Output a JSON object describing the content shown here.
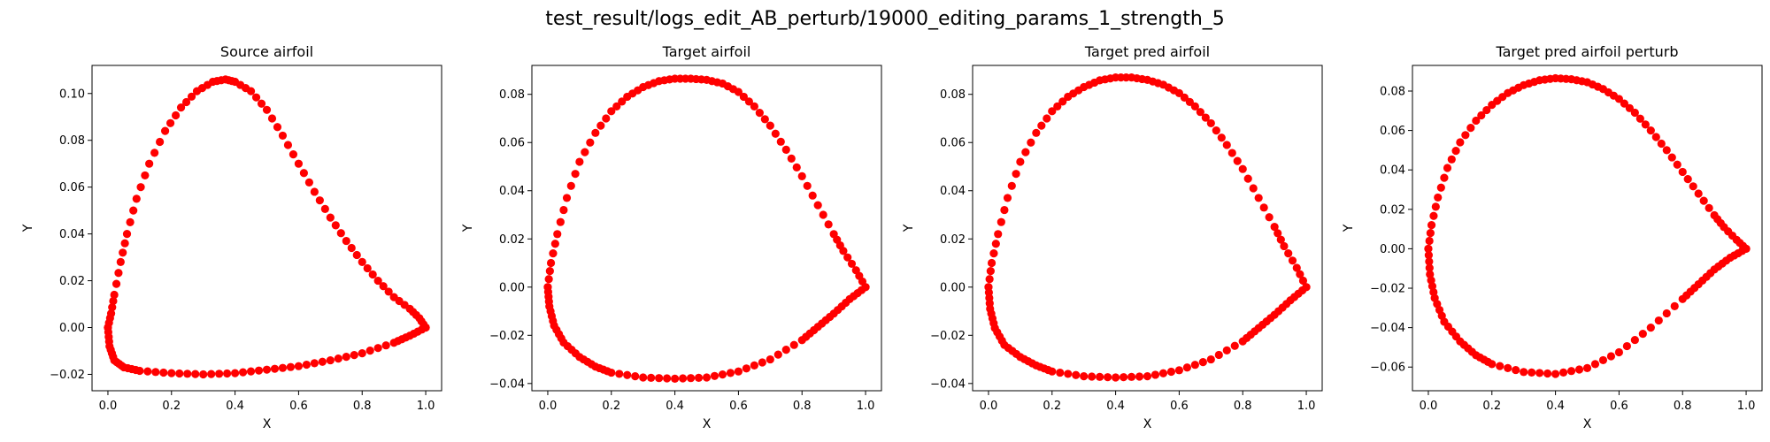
{
  "figure": {
    "suptitle": "test_result/logs_edit_AB_perturb/19000_editing_params_1_strength_5",
    "marker_color": "#ff0000",
    "marker_shape": "circle"
  },
  "chart_data": [
    {
      "type": "scatter",
      "title": "Source airfoil",
      "xlabel": "X",
      "ylabel": "Y",
      "xlim": [
        -0.05,
        1.05
      ],
      "ylim": [
        -0.027,
        0.112
      ],
      "xticks": [
        0.0,
        0.2,
        0.4,
        0.6,
        0.8,
        1.0
      ],
      "xtick_labels": [
        "0.0",
        "0.2",
        "0.4",
        "0.6",
        "0.8",
        "1.0"
      ],
      "yticks": [
        -0.02,
        0.0,
        0.02,
        0.04,
        0.06,
        0.08,
        0.1
      ],
      "ytick_labels": [
        "−0.02",
        "0.00",
        "0.02",
        "0.04",
        "0.06",
        "0.08",
        "0.10"
      ],
      "upper_surface": [
        [
          1.0,
          0.0
        ],
        [
          0.98,
          0.004
        ],
        [
          0.95,
          0.008
        ],
        [
          0.9,
          0.013
        ],
        [
          0.85,
          0.02
        ],
        [
          0.8,
          0.028
        ],
        [
          0.75,
          0.037
        ],
        [
          0.7,
          0.047
        ],
        [
          0.65,
          0.058
        ],
        [
          0.6,
          0.07
        ],
        [
          0.55,
          0.082
        ],
        [
          0.5,
          0.093
        ],
        [
          0.45,
          0.101
        ],
        [
          0.4,
          0.105
        ],
        [
          0.37,
          0.106
        ],
        [
          0.33,
          0.105
        ],
        [
          0.28,
          0.101
        ],
        [
          0.23,
          0.094
        ],
        [
          0.18,
          0.084
        ],
        [
          0.13,
          0.07
        ],
        [
          0.09,
          0.055
        ],
        [
          0.06,
          0.04
        ],
        [
          0.04,
          0.028
        ],
        [
          0.02,
          0.014
        ],
        [
          0.01,
          0.006
        ],
        [
          0.0,
          0.0
        ]
      ],
      "lower_surface": [
        [
          0.0,
          0.0
        ],
        [
          0.005,
          -0.008
        ],
        [
          0.02,
          -0.014
        ],
        [
          0.05,
          -0.017
        ],
        [
          0.1,
          -0.0185
        ],
        [
          0.2,
          -0.0195
        ],
        [
          0.3,
          -0.02
        ],
        [
          0.4,
          -0.0195
        ],
        [
          0.5,
          -0.018
        ],
        [
          0.6,
          -0.0165
        ],
        [
          0.7,
          -0.014
        ],
        [
          0.8,
          -0.011
        ],
        [
          0.9,
          -0.0065
        ],
        [
          0.95,
          -0.0035
        ],
        [
          1.0,
          0.0
        ]
      ]
    },
    {
      "type": "scatter",
      "title": "Target airfoil",
      "xlabel": "X",
      "ylabel": "Y",
      "xlim": [
        -0.05,
        1.05
      ],
      "ylim": [
        -0.043,
        0.092
      ],
      "xticks": [
        0.0,
        0.2,
        0.4,
        0.6,
        0.8,
        1.0
      ],
      "xtick_labels": [
        "0.0",
        "0.2",
        "0.4",
        "0.6",
        "0.8",
        "1.0"
      ],
      "yticks": [
        -0.04,
        -0.02,
        0.0,
        0.02,
        0.04,
        0.06,
        0.08
      ],
      "ytick_labels": [
        "−0.04",
        "−0.02",
        "0.00",
        "0.02",
        "0.04",
        "0.06",
        "0.08"
      ],
      "upper_surface": [
        [
          1.0,
          0.0
        ],
        [
          0.97,
          0.007
        ],
        [
          0.93,
          0.015
        ],
        [
          0.9,
          0.022
        ],
        [
          0.85,
          0.034
        ],
        [
          0.8,
          0.046
        ],
        [
          0.75,
          0.057
        ],
        [
          0.7,
          0.067
        ],
        [
          0.65,
          0.075
        ],
        [
          0.6,
          0.081
        ],
        [
          0.55,
          0.0845
        ],
        [
          0.5,
          0.086
        ],
        [
          0.45,
          0.0865
        ],
        [
          0.4,
          0.0865
        ],
        [
          0.35,
          0.0855
        ],
        [
          0.3,
          0.083
        ],
        [
          0.25,
          0.079
        ],
        [
          0.2,
          0.073
        ],
        [
          0.15,
          0.064
        ],
        [
          0.1,
          0.052
        ],
        [
          0.06,
          0.037
        ],
        [
          0.03,
          0.022
        ],
        [
          0.01,
          0.01
        ],
        [
          0.0,
          0.0
        ]
      ],
      "lower_surface": [
        [
          0.0,
          0.0
        ],
        [
          0.005,
          -0.008
        ],
        [
          0.02,
          -0.016
        ],
        [
          0.05,
          -0.023
        ],
        [
          0.1,
          -0.029
        ],
        [
          0.15,
          -0.033
        ],
        [
          0.2,
          -0.0355
        ],
        [
          0.3,
          -0.0375
        ],
        [
          0.4,
          -0.038
        ],
        [
          0.5,
          -0.0375
        ],
        [
          0.6,
          -0.035
        ],
        [
          0.7,
          -0.03
        ],
        [
          0.8,
          -0.022
        ],
        [
          0.85,
          -0.0165
        ],
        [
          0.9,
          -0.011
        ],
        [
          0.95,
          -0.005
        ],
        [
          1.0,
          0.0
        ]
      ]
    },
    {
      "type": "scatter",
      "title": "Target pred airfoil",
      "xlabel": "X",
      "ylabel": "Y",
      "xlim": [
        -0.05,
        1.05
      ],
      "ylim": [
        -0.043,
        0.092
      ],
      "xticks": [
        0.0,
        0.2,
        0.4,
        0.6,
        0.8,
        1.0
      ],
      "xtick_labels": [
        "0.0",
        "0.2",
        "0.4",
        "0.6",
        "0.8",
        "1.0"
      ],
      "yticks": [
        -0.04,
        -0.02,
        0.0,
        0.02,
        0.04,
        0.06,
        0.08
      ],
      "ytick_labels": [
        "−0.04",
        "−0.02",
        "0.00",
        "0.02",
        "0.04",
        "0.06",
        "0.08"
      ],
      "upper_surface": [
        [
          1.0,
          0.0
        ],
        [
          0.97,
          0.008
        ],
        [
          0.93,
          0.017
        ],
        [
          0.9,
          0.025
        ],
        [
          0.85,
          0.037
        ],
        [
          0.8,
          0.049
        ],
        [
          0.75,
          0.059
        ],
        [
          0.7,
          0.068
        ],
        [
          0.65,
          0.075
        ],
        [
          0.6,
          0.0805
        ],
        [
          0.55,
          0.084
        ],
        [
          0.5,
          0.086
        ],
        [
          0.45,
          0.087
        ],
        [
          0.4,
          0.087
        ],
        [
          0.35,
          0.0858
        ],
        [
          0.3,
          0.083
        ],
        [
          0.25,
          0.079
        ],
        [
          0.2,
          0.073
        ],
        [
          0.15,
          0.064
        ],
        [
          0.1,
          0.052
        ],
        [
          0.06,
          0.037
        ],
        [
          0.03,
          0.022
        ],
        [
          0.01,
          0.01
        ],
        [
          0.0,
          0.0
        ]
      ],
      "lower_surface": [
        [
          0.0,
          0.0
        ],
        [
          0.005,
          -0.009
        ],
        [
          0.02,
          -0.017
        ],
        [
          0.05,
          -0.024
        ],
        [
          0.1,
          -0.029
        ],
        [
          0.15,
          -0.0325
        ],
        [
          0.2,
          -0.035
        ],
        [
          0.3,
          -0.037
        ],
        [
          0.4,
          -0.0375
        ],
        [
          0.5,
          -0.037
        ],
        [
          0.6,
          -0.0345
        ],
        [
          0.7,
          -0.03
        ],
        [
          0.8,
          -0.0225
        ],
        [
          0.85,
          -0.017
        ],
        [
          0.9,
          -0.0115
        ],
        [
          0.95,
          -0.0055
        ],
        [
          1.0,
          0.0
        ]
      ]
    },
    {
      "type": "scatter",
      "title": "Target pred airfoil perturb",
      "xlabel": "X",
      "ylabel": "Y",
      "xlim": [
        -0.05,
        1.05
      ],
      "ylim": [
        -0.072,
        0.093
      ],
      "xticks": [
        0.0,
        0.2,
        0.4,
        0.6,
        0.8,
        1.0
      ],
      "xtick_labels": [
        "0.0",
        "0.2",
        "0.4",
        "0.6",
        "0.8",
        "1.0"
      ],
      "yticks": [
        -0.06,
        -0.04,
        -0.02,
        0.0,
        0.02,
        0.04,
        0.06,
        0.08
      ],
      "ytick_labels": [
        "−0.06",
        "−0.04",
        "−0.02",
        "0.00",
        "0.02",
        "0.04",
        "0.06",
        "0.08"
      ],
      "upper_surface": [
        [
          1.0,
          0.0
        ],
        [
          0.97,
          0.0045
        ],
        [
          0.93,
          0.011
        ],
        [
          0.9,
          0.017
        ],
        [
          0.85,
          0.028
        ],
        [
          0.8,
          0.039
        ],
        [
          0.75,
          0.05
        ],
        [
          0.7,
          0.06
        ],
        [
          0.65,
          0.069
        ],
        [
          0.6,
          0.076
        ],
        [
          0.55,
          0.081
        ],
        [
          0.5,
          0.0845
        ],
        [
          0.45,
          0.086
        ],
        [
          0.4,
          0.0865
        ],
        [
          0.35,
          0.0855
        ],
        [
          0.3,
          0.083
        ],
        [
          0.25,
          0.079
        ],
        [
          0.2,
          0.073
        ],
        [
          0.15,
          0.065
        ],
        [
          0.1,
          0.054
        ],
        [
          0.06,
          0.041
        ],
        [
          0.03,
          0.026
        ],
        [
          0.01,
          0.012
        ],
        [
          0.0,
          0.0
        ]
      ],
      "lower_surface": [
        [
          0.0,
          0.0
        ],
        [
          0.005,
          -0.013
        ],
        [
          0.02,
          -0.025
        ],
        [
          0.05,
          -0.037
        ],
        [
          0.1,
          -0.047
        ],
        [
          0.15,
          -0.054
        ],
        [
          0.2,
          -0.0585
        ],
        [
          0.3,
          -0.0625
        ],
        [
          0.4,
          -0.0635
        ],
        [
          0.5,
          -0.0605
        ],
        [
          0.6,
          -0.0525
        ],
        [
          0.7,
          -0.04
        ],
        [
          0.8,
          -0.0255
        ],
        [
          0.85,
          -0.018
        ],
        [
          0.9,
          -0.0105
        ],
        [
          0.95,
          -0.0045
        ],
        [
          1.0,
          0.0
        ]
      ]
    }
  ]
}
